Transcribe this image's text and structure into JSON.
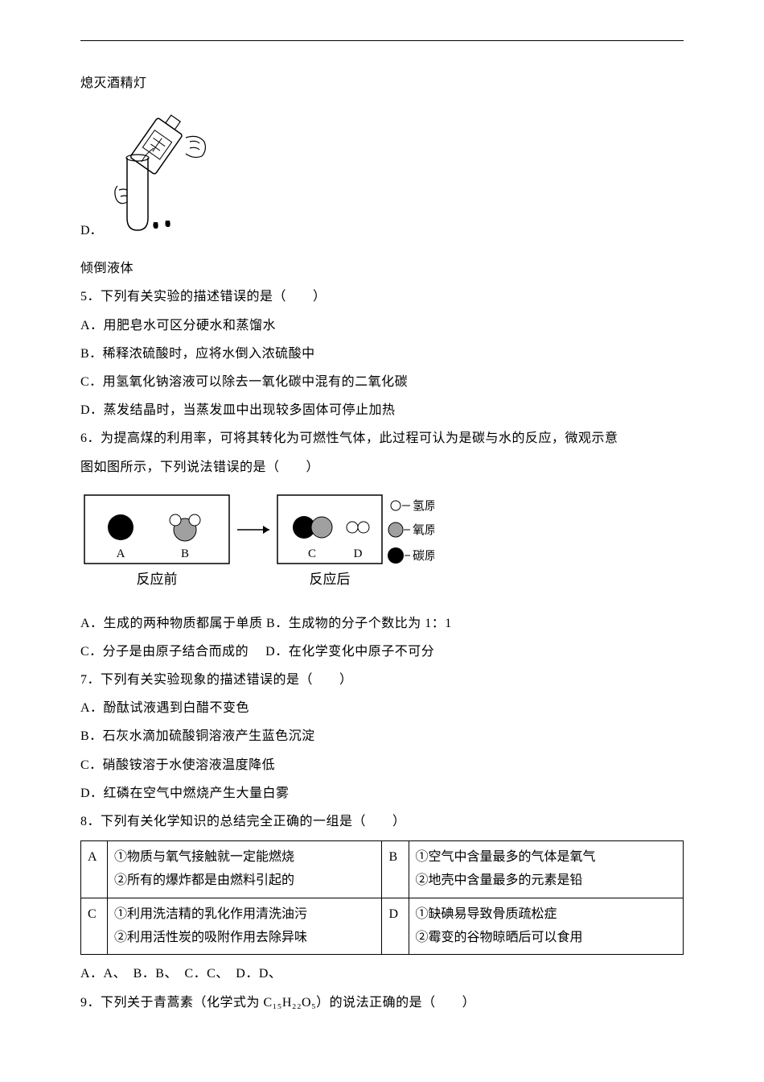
{
  "text": {
    "line_top": "熄灭酒精灯",
    "option_d_label": "D．",
    "line_d_caption": "倾倒液体",
    "q5": "5．下列有关实验的描述错误的是（　　）",
    "q5a": "A．用肥皂水可区分硬水和蒸馏水",
    "q5b": "B．稀释浓硫酸时，应将水倒入浓硫酸中",
    "q5c": "C．用氢氧化钠溶液可以除去一氧化碳中混有的二氧化碳",
    "q5d": "D．蒸发结晶时，当蒸发皿中出现较多固体可停止加热",
    "q6a": "6．为提高煤的利用率，可将其转化为可燃性气体，此过程可认为是碳与水的反应，微观示意",
    "q6b": "图如图所示，下列说法错误的是（　　）",
    "q6_optA": "A．生成的两种物质都属于单质  B．生成物的分子个数比为 1：1",
    "q6_optC": "C．分子是由原子结合而成的　 D．在化学变化中原子不可分",
    "q7": "7．下列有关实验现象的描述错误的是（　　）",
    "q7a": "A．酚酞试液遇到白醋不变色",
    "q7b": "B．石灰水滴加硫酸铜溶液产生蓝色沉淀",
    "q7c": "C．硝酸铵溶于水使溶液温度降低",
    "q7d": "D．红磷在空气中燃烧产生大量白雾",
    "q8": "8．下列有关化学知识的总结完全正确的一组是（　　）",
    "q8_ans": "A．A、　B．B、　C．C、　D．D、",
    "q9": "9．下列关于青蒿素（化学式为 C₁₅H₂₂O₅）的说法正确的是（　　）"
  },
  "table_q8": {
    "rows": [
      {
        "leftLetter": "A",
        "leftContent": "①物质与氧气接触就一定能燃烧\n②所有的爆炸都是由燃料引起的",
        "rightLetter": "B",
        "rightContent": "①空气中含量最多的气体是氧气\n②地壳中含量最多的元素是铅"
      },
      {
        "leftLetter": "C",
        "leftContent": "①利用洗洁精的乳化作用清洗油污\n②利用活性炭的吸附作用去除异味",
        "rightLetter": "D",
        "rightContent": "①缺碘易导致骨质疏松症\n②霉变的谷物晾晒后可以食用"
      }
    ]
  },
  "diagram_labels": {
    "A": "A",
    "B": "B",
    "C": "C",
    "D": "D",
    "before": "反应前",
    "after": "反应后",
    "h": "氢原子",
    "o": "氧原子",
    "c": "碳原子"
  },
  "colors": {
    "text": "#000000",
    "bg": "#ffffff",
    "gray": "#808080",
    "lightgray": "#d0d0d0",
    "black_fill": "#000000"
  }
}
